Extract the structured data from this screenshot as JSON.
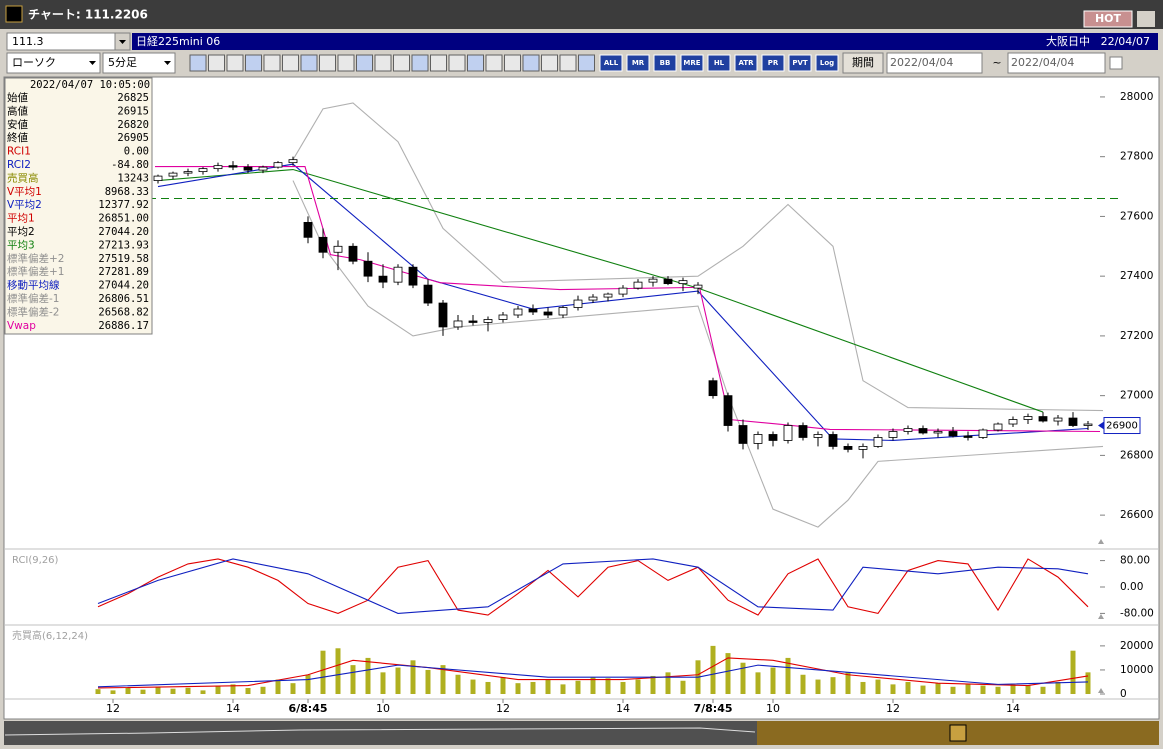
{
  "window": {
    "title": "チャート: 111.2206",
    "hot": "HOT"
  },
  "toolbar": {
    "code": "111.3",
    "name": "日経225mini 06",
    "market": "大阪日中",
    "date": "22/04/07",
    "chart_type": "ローソク",
    "interval": "5分足",
    "icons": [
      "ALL",
      "MR",
      "BB",
      "MRE",
      "HL",
      "ATR",
      "PR",
      "PVT",
      "Log"
    ],
    "period_button": "期間",
    "from": "2022/04/04",
    "tilde": "~",
    "to": "2022/04/04"
  },
  "info_panel": {
    "timestamp": "2022/04/07 10:05:00",
    "rows": [
      {
        "label": "始値",
        "value": "26825",
        "color": "#000000"
      },
      {
        "label": "高値",
        "value": "26915",
        "color": "#000000"
      },
      {
        "label": "安値",
        "value": "26820",
        "color": "#000000"
      },
      {
        "label": "終値",
        "value": "26905",
        "color": "#000000"
      },
      {
        "label": "RCI1",
        "value": "0.00",
        "color": "#d00000"
      },
      {
        "label": "RCI2",
        "value": "-84.80",
        "color": "#1020c0"
      },
      {
        "label": "売買高",
        "value": "13243",
        "color": "#8a8a00"
      },
      {
        "label": "V平均1",
        "value": "8968.33",
        "color": "#d00000"
      },
      {
        "label": "V平均2",
        "value": "12377.92",
        "color": "#1020c0"
      },
      {
        "label": "平均1",
        "value": "26851.00",
        "color": "#d00000"
      },
      {
        "label": "平均2",
        "value": "27044.20",
        "color": "#000000"
      },
      {
        "label": "平均3",
        "value": "27213.93",
        "color": "#108010"
      },
      {
        "label": "標準偏差+2",
        "value": "27519.58",
        "color": "#909090"
      },
      {
        "label": "標準偏差+1",
        "value": "27281.89",
        "color": "#909090"
      },
      {
        "label": "移動平均線",
        "value": "27044.20",
        "color": "#1020c0"
      },
      {
        "label": "標準偏差-1",
        "value": "26806.51",
        "color": "#909090"
      },
      {
        "label": "標準偏差-2",
        "value": "26568.82",
        "color": "#909090"
      },
      {
        "label": "Vwap",
        "value": "26886.17",
        "color": "#e000a0"
      }
    ]
  },
  "chart_data": [
    {
      "type": "candlestick",
      "categories": [
        null,
        "12",
        null,
        null,
        null,
        null,
        null,
        null,
        null,
        "14",
        null,
        null,
        null,
        null,
        "6/8:45",
        null,
        null,
        null,
        null,
        "10",
        null,
        null,
        null,
        null,
        null,
        null,
        null,
        "12",
        null,
        null,
        null,
        null,
        null,
        null,
        null,
        "14",
        null,
        null,
        null,
        null,
        null,
        "7/8:45",
        null,
        null,
        null,
        "10",
        null,
        null,
        null,
        null,
        null,
        null,
        null,
        "12",
        null,
        null,
        null,
        null,
        null,
        null,
        null,
        "14",
        null,
        null,
        null,
        null,
        null
      ],
      "open": [
        27700,
        27710,
        27715,
        27720,
        27720,
        27735,
        27745,
        27750,
        27760,
        27770,
        27765,
        27755,
        27765,
        27780,
        27580,
        27530,
        27480,
        27500,
        27450,
        27400,
        27380,
        27430,
        27370,
        27310,
        27230,
        27250,
        27245,
        27255,
        27270,
        27290,
        27280,
        27270,
        27295,
        27320,
        27330,
        27340,
        27360,
        27380,
        27390,
        27375,
        27360,
        27050,
        27000,
        26900,
        26840,
        26870,
        26850,
        26900,
        26860,
        26870,
        26830,
        26820,
        26830,
        26860,
        26880,
        26890,
        26875,
        26880,
        26865,
        26860,
        26885,
        26905,
        26920,
        26930,
        26915,
        26925,
        26900
      ],
      "high": [
        27720,
        27725,
        27730,
        27735,
        27740,
        27750,
        27760,
        27765,
        27780,
        27785,
        27775,
        27770,
        27785,
        27800,
        27600,
        27560,
        27520,
        27510,
        27480,
        27440,
        27440,
        27440,
        27390,
        27320,
        27270,
        27270,
        27265,
        27280,
        27300,
        27305,
        27295,
        27300,
        27335,
        27340,
        27345,
        27370,
        27390,
        27400,
        27400,
        27395,
        27380,
        27060,
        27010,
        26920,
        26880,
        26880,
        26910,
        26910,
        26880,
        26880,
        26840,
        26840,
        26870,
        26890,
        26900,
        26900,
        26890,
        26895,
        26880,
        26890,
        26910,
        26930,
        26940,
        26945,
        26935,
        26945,
        26915
      ],
      "low": [
        27690,
        27700,
        27705,
        27710,
        27710,
        27725,
        27735,
        27740,
        27750,
        27755,
        27745,
        27745,
        27760,
        27770,
        27510,
        27460,
        27420,
        27440,
        27380,
        27360,
        27370,
        27360,
        27300,
        27200,
        27220,
        27235,
        27215,
        27245,
        27260,
        27270,
        27260,
        27260,
        27285,
        27310,
        27315,
        27330,
        27355,
        27365,
        27370,
        27350,
        27340,
        26990,
        26880,
        26820,
        26820,
        26830,
        26840,
        26850,
        26830,
        26820,
        26810,
        26790,
        26825,
        26850,
        26870,
        26870,
        26860,
        26860,
        26850,
        26855,
        26880,
        26895,
        26905,
        26910,
        26900,
        26895,
        26885
      ],
      "close": [
        27710,
        27715,
        27720,
        27725,
        27735,
        27745,
        27750,
        27760,
        27770,
        27765,
        27755,
        27765,
        27780,
        27790,
        27530,
        27480,
        27500,
        27450,
        27400,
        27380,
        27430,
        27370,
        27310,
        27230,
        27250,
        27245,
        27255,
        27270,
        27290,
        27280,
        27270,
        27295,
        27320,
        27330,
        27340,
        27360,
        27380,
        27390,
        27375,
        27385,
        27370,
        27000,
        26900,
        26840,
        26870,
        26850,
        26900,
        26860,
        26870,
        26830,
        26820,
        26830,
        26860,
        26880,
        26890,
        26875,
        26880,
        26865,
        26860,
        26885,
        26905,
        26920,
        26930,
        26915,
        26925,
        26900,
        26905
      ],
      "ylim": [
        26500,
        28050
      ],
      "yticks": [
        26600,
        26800,
        27000,
        27200,
        27400,
        27600,
        27800,
        28000
      ],
      "series": [
        {
          "color": "#b0b0b0",
          "x": [
            13,
            15,
            17,
            20,
            23,
            27,
            40,
            43,
            46,
            49,
            51,
            54,
            67
          ],
          "values": [
            27790,
            27960,
            27980,
            27850,
            27560,
            27380,
            27400,
            27500,
            27640,
            27500,
            27050,
            26960,
            26950
          ]
        },
        {
          "color": "#b0b0b0",
          "x": [
            13,
            15,
            18,
            21,
            24,
            40,
            42,
            45,
            48,
            50,
            52,
            67
          ],
          "values": [
            27720,
            27500,
            27300,
            27200,
            27230,
            27300,
            27000,
            26620,
            26560,
            26650,
            26780,
            26830
          ]
        },
        {
          "color": "#108010",
          "x": [
            4,
            13,
            40,
            63
          ],
          "values": [
            27720,
            27757,
            27360,
            26945
          ]
        },
        {
          "color": "#1020c0",
          "x": [
            4,
            13,
            22,
            29,
            40,
            49,
            53,
            66
          ],
          "values": [
            27700,
            27775,
            27390,
            27290,
            27350,
            26855,
            26850,
            26890
          ]
        },
        {
          "color": "#e000a0",
          "x": [
            3.8,
            13.8,
            15.5,
            17.5,
            22.8,
            30.8,
            39.5,
            40.1,
            42.1,
            45.5,
            48.8,
            66.8
          ],
          "values": [
            27767,
            27767,
            27472,
            27455,
            27378,
            27355,
            27362,
            27362,
            26920,
            26904,
            26887,
            26880
          ]
        }
      ],
      "hline": {
        "value": 27660,
        "color": "#108010"
      },
      "last_price": 26900
    },
    {
      "type": "line",
      "title": "RCI(9,26)",
      "ylim": [
        -100,
        100
      ],
      "yticks": [
        {
          "value": 80,
          "label": "80.00"
        },
        {
          "value": 0,
          "label": "0.00"
        },
        {
          "value": -80,
          "label": "-80.00"
        }
      ],
      "series": [
        {
          "color": "#e00000",
          "x": [
            0,
            2,
            4,
            6,
            8,
            10,
            12,
            14,
            16,
            18,
            20,
            22,
            24,
            26,
            28,
            30,
            32,
            34,
            36,
            38,
            40,
            42,
            44,
            46,
            48,
            50,
            52,
            54,
            56,
            58,
            60,
            62,
            64,
            66
          ],
          "values": [
            -60,
            -20,
            30,
            70,
            85,
            60,
            20,
            -50,
            -80,
            -40,
            60,
            80,
            -70,
            -85,
            -20,
            50,
            -30,
            60,
            80,
            20,
            60,
            -40,
            -85,
            40,
            85,
            -60,
            -80,
            50,
            80,
            70,
            -70,
            85,
            30,
            -60
          ]
        },
        {
          "color": "#1020c0",
          "x": [
            0,
            4,
            9,
            14,
            20,
            26,
            31,
            37,
            40,
            44,
            49,
            51,
            56,
            60,
            64,
            66
          ],
          "values": [
            -50,
            20,
            85,
            40,
            -80,
            -60,
            70,
            85,
            60,
            -60,
            -70,
            60,
            40,
            60,
            55,
            40
          ]
        }
      ]
    },
    {
      "type": "bar",
      "title": "売買高(6,12,24)",
      "color": "#b0b020",
      "ylim": [
        0,
        26600
      ],
      "yticks": [
        0,
        10000,
        20000
      ],
      "values": [
        2000,
        1500,
        2500,
        1800,
        3000,
        2200,
        2600,
        1500,
        3500,
        4000,
        2500,
        3000,
        6000,
        4500,
        8000,
        18000,
        19000,
        12000,
        15000,
        9000,
        11000,
        14000,
        10000,
        12000,
        8000,
        6000,
        5000,
        7000,
        4500,
        5000,
        6000,
        4000,
        5500,
        7000,
        6500,
        5000,
        6000,
        7500,
        9000,
        5500,
        14000,
        20000,
        17000,
        13000,
        9000,
        11000,
        15000,
        8000,
        6000,
        7000,
        9000,
        5000,
        6000,
        4000,
        5000,
        3500,
        4500,
        3000,
        4000,
        3500,
        3000,
        4000,
        3500,
        3000,
        5000,
        18000,
        9000
      ],
      "series": [
        {
          "color": "#e00000",
          "x": [
            0,
            10,
            14,
            17,
            22,
            28,
            35,
            40,
            42,
            45,
            50,
            56,
            62,
            66
          ],
          "values": [
            2500,
            3500,
            8000,
            14000,
            11000,
            6000,
            6000,
            8000,
            15000,
            14000,
            8000,
            4500,
            3500,
            7500
          ]
        },
        {
          "color": "#1020c0",
          "x": [
            0,
            14,
            20,
            30,
            40,
            44,
            50,
            60,
            66
          ],
          "values": [
            3000,
            6000,
            12000,
            7000,
            7000,
            12000,
            9000,
            4000,
            5000
          ]
        }
      ]
    }
  ]
}
